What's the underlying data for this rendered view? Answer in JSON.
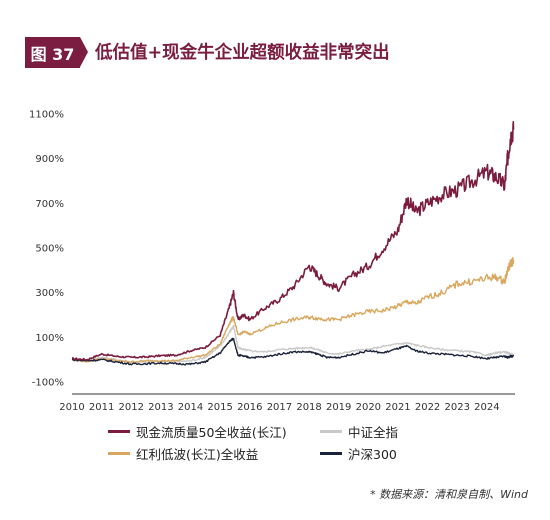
{
  "header": {
    "badge": "图 37",
    "title": "低估值+现金牛企业超额收益非常突出"
  },
  "footer": {
    "source": "* 数据来源：清和泉自制、Wind"
  },
  "chart_data": {
    "type": "line",
    "title": "低估值+现金牛企业超额收益非常突出",
    "xlabel": "",
    "ylabel": "",
    "x_ticks": [
      "2010",
      "2011",
      "2012",
      "2013",
      "2014",
      "2015",
      "2016",
      "2017",
      "2018",
      "2019",
      "2020",
      "2021",
      "2022",
      "2023",
      "2024"
    ],
    "y_ticks": [
      "-100%",
      "100%",
      "300%",
      "500%",
      "700%",
      "900%",
      "1100%"
    ],
    "ylim": [
      -100,
      1100
    ],
    "xlim": [
      2010.0,
      2024.95
    ],
    "grid": false,
    "legend_position": "bottom",
    "x": [
      2010.0,
      2010.5,
      2011.0,
      2011.5,
      2012.0,
      2012.5,
      2013.0,
      2013.5,
      2014.0,
      2014.5,
      2015.0,
      2015.3,
      2015.45,
      2015.6,
      2015.8,
      2016.0,
      2016.5,
      2017.0,
      2017.5,
      2018.0,
      2018.3,
      2018.6,
      2019.0,
      2019.5,
      2020.0,
      2020.5,
      2021.0,
      2021.3,
      2021.6,
      2022.0,
      2022.5,
      2023.0,
      2023.5,
      2024.0,
      2024.3,
      2024.6,
      2024.7,
      2024.8,
      2024.9
    ],
    "series": [
      {
        "name": "现金流质量50全收益(长江)",
        "color": "#7b1d40",
        "values": [
          5,
          0,
          25,
          15,
          10,
          12,
          18,
          20,
          40,
          55,
          110,
          230,
          300,
          180,
          200,
          180,
          230,
          270,
          330,
          420,
          380,
          340,
          320,
          380,
          420,
          500,
          580,
          720,
          660,
          700,
          740,
          760,
          800,
          840,
          820,
          780,
          900,
          1000,
          1030
        ]
      },
      {
        "name": "中证全指",
        "color": "#c9c9c9",
        "values": [
          0,
          -5,
          10,
          0,
          -10,
          -12,
          -5,
          -8,
          -5,
          10,
          60,
          120,
          150,
          55,
          45,
          40,
          35,
          45,
          50,
          55,
          45,
          30,
          25,
          40,
          45,
          60,
          70,
          75,
          65,
          55,
          45,
          40,
          35,
          20,
          30,
          35,
          30,
          25,
          22
        ]
      },
      {
        "name": "红利低波(长江)全收益",
        "color": "#d9a75e",
        "values": [
          0,
          -8,
          5,
          -5,
          -10,
          -5,
          -5,
          -5,
          10,
          20,
          70,
          160,
          190,
          110,
          125,
          115,
          140,
          165,
          180,
          190,
          185,
          180,
          180,
          200,
          215,
          220,
          240,
          260,
          250,
          280,
          300,
          340,
          350,
          365,
          370,
          350,
          400,
          430,
          445
        ]
      },
      {
        "name": "沪深300",
        "color": "#1a2238",
        "values": [
          0,
          -5,
          0,
          -10,
          -20,
          -18,
          -15,
          -18,
          -20,
          -10,
          30,
          80,
          95,
          20,
          15,
          10,
          12,
          25,
          35,
          35,
          25,
          10,
          10,
          25,
          40,
          30,
          50,
          60,
          40,
          30,
          25,
          20,
          15,
          5,
          10,
          15,
          10,
          15,
          15
        ]
      }
    ]
  }
}
